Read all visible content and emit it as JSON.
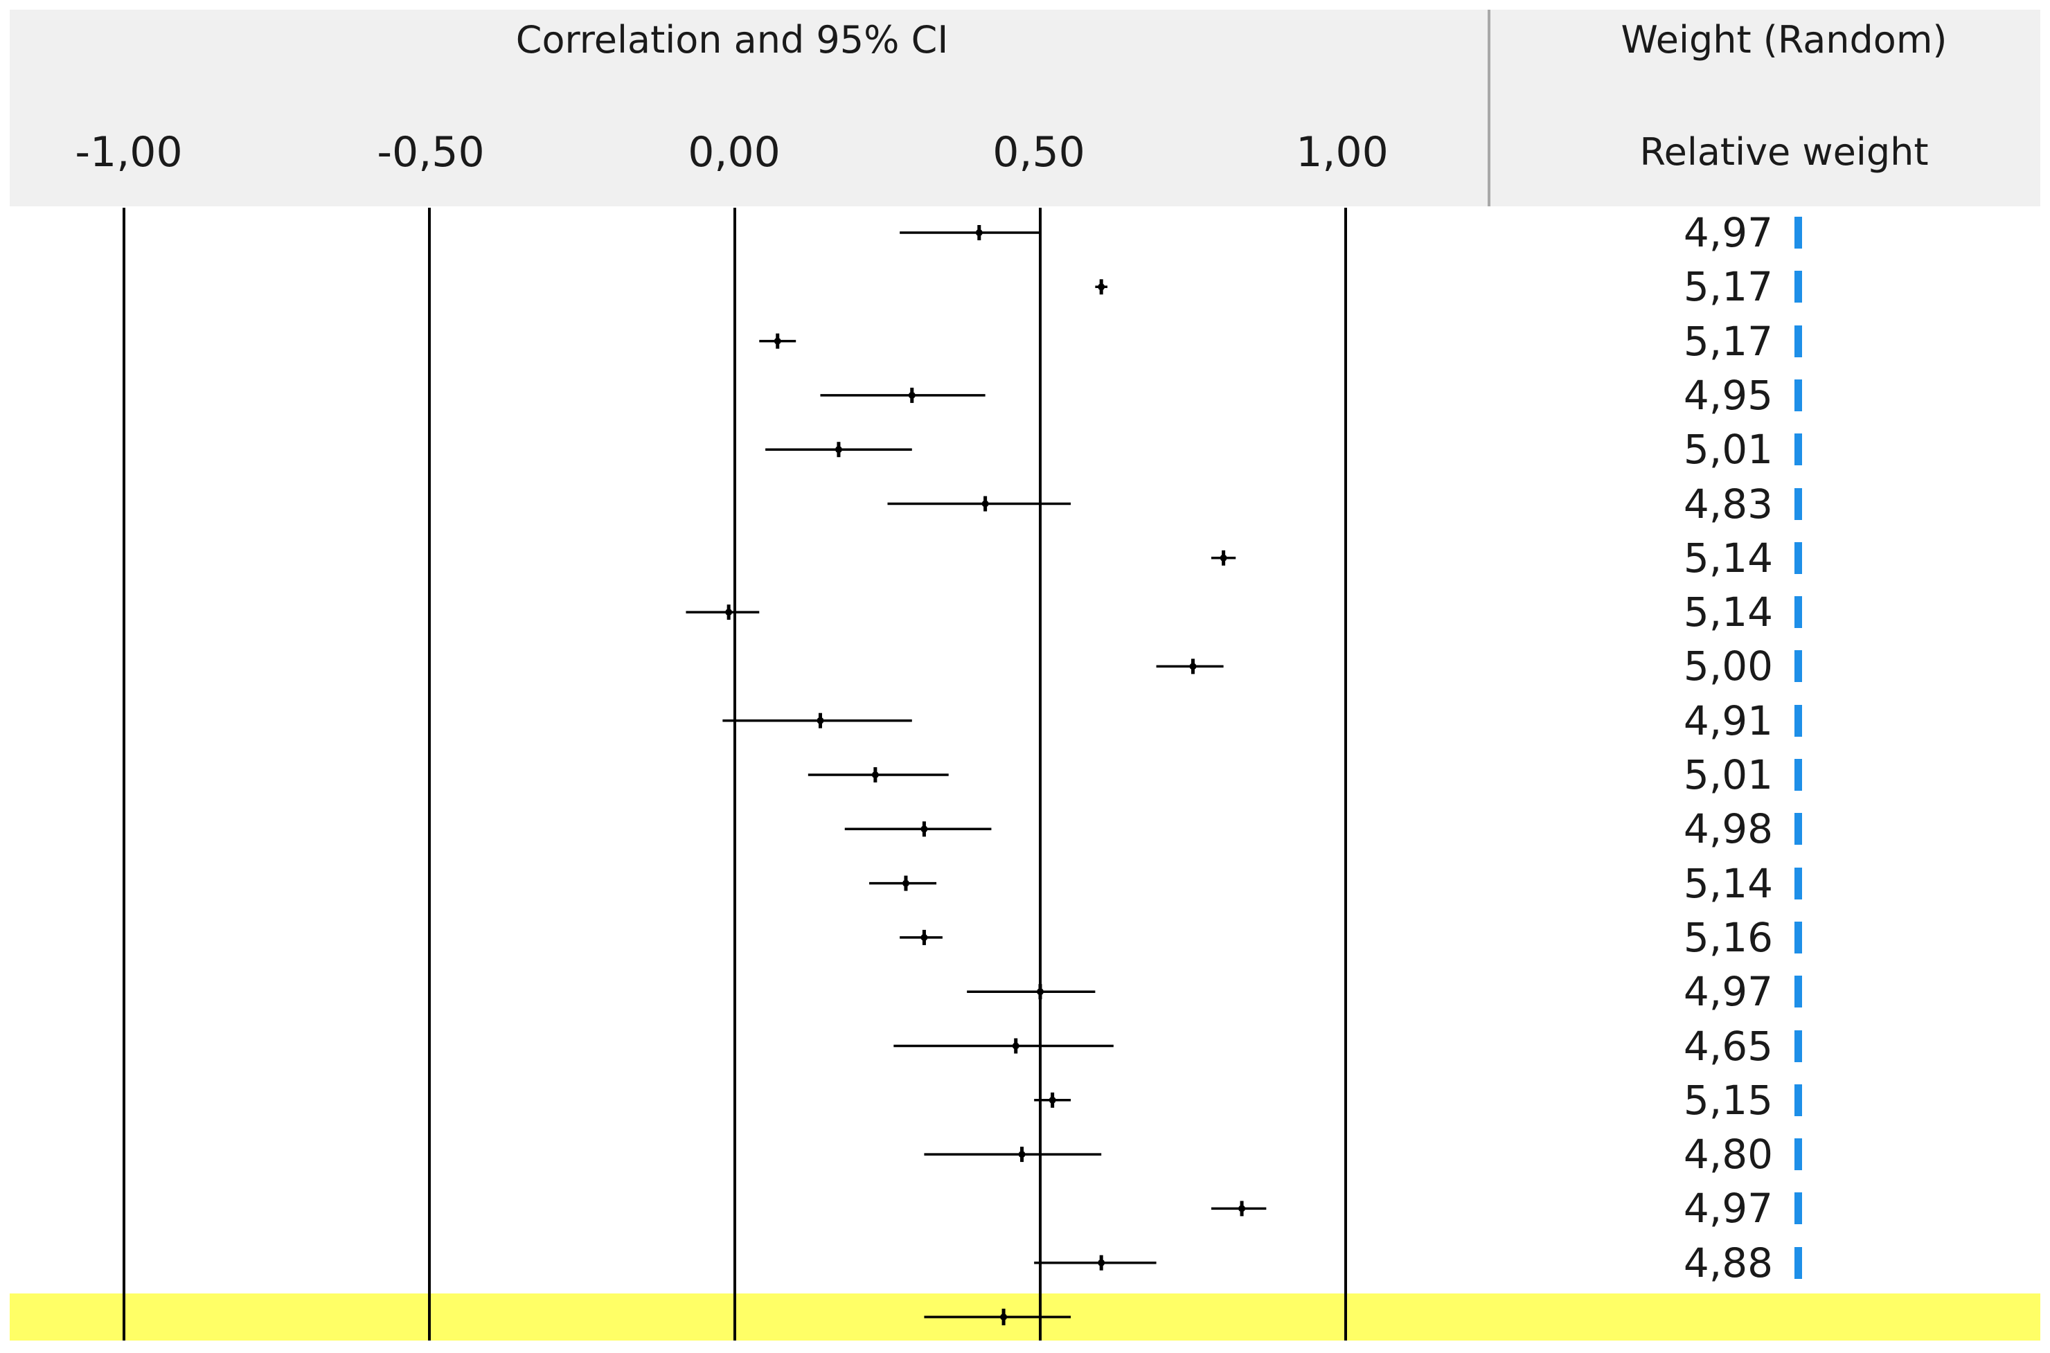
{
  "chart_data": {
    "type": "forest",
    "title": "Correlation and 95% CI",
    "weight_column_title": "Weight (Random)",
    "weight_column_subtitle": "Relative weight",
    "tick_labels": [
      "-1,00",
      "-0,50",
      "0,00",
      "0,50",
      "1,00"
    ],
    "tick_values": [
      -1.0,
      -0.5,
      0.0,
      0.5,
      1.0
    ],
    "xlim": [
      -1.0,
      1.0
    ],
    "studies": [
      {
        "r": 0.4,
        "lo": 0.27,
        "hi": 0.5,
        "weight": "4,97"
      },
      {
        "r": 0.6,
        "lo": 0.59,
        "hi": 0.61,
        "weight": "5,17"
      },
      {
        "r": 0.07,
        "lo": 0.04,
        "hi": 0.1,
        "weight": "5,17"
      },
      {
        "r": 0.29,
        "lo": 0.14,
        "hi": 0.41,
        "weight": "4,95"
      },
      {
        "r": 0.17,
        "lo": 0.05,
        "hi": 0.29,
        "weight": "5,01"
      },
      {
        "r": 0.41,
        "lo": 0.25,
        "hi": 0.55,
        "weight": "4,83"
      },
      {
        "r": 0.8,
        "lo": 0.78,
        "hi": 0.82,
        "weight": "5,14"
      },
      {
        "r": -0.01,
        "lo": -0.08,
        "hi": 0.04,
        "weight": "5,14"
      },
      {
        "r": 0.75,
        "lo": 0.69,
        "hi": 0.8,
        "weight": "5,00"
      },
      {
        "r": 0.14,
        "lo": -0.02,
        "hi": 0.29,
        "weight": "4,91"
      },
      {
        "r": 0.23,
        "lo": 0.12,
        "hi": 0.35,
        "weight": "5,01"
      },
      {
        "r": 0.31,
        "lo": 0.18,
        "hi": 0.42,
        "weight": "4,98"
      },
      {
        "r": 0.28,
        "lo": 0.22,
        "hi": 0.33,
        "weight": "5,14"
      },
      {
        "r": 0.31,
        "lo": 0.27,
        "hi": 0.34,
        "weight": "5,16"
      },
      {
        "r": 0.5,
        "lo": 0.38,
        "hi": 0.59,
        "weight": "4,97"
      },
      {
        "r": 0.46,
        "lo": 0.26,
        "hi": 0.62,
        "weight": "4,65"
      },
      {
        "r": 0.52,
        "lo": 0.49,
        "hi": 0.55,
        "weight": "5,15"
      },
      {
        "r": 0.47,
        "lo": 0.31,
        "hi": 0.6,
        "weight": "4,80"
      },
      {
        "r": 0.83,
        "lo": 0.78,
        "hi": 0.87,
        "weight": "4,97"
      },
      {
        "r": 0.6,
        "lo": 0.49,
        "hi": 0.69,
        "weight": "4,88"
      }
    ],
    "summary": {
      "r": 0.44,
      "lo": 0.31,
      "hi": 0.55
    }
  },
  "colors": {
    "header_bg": "#f0f0f0",
    "summary_band": "#ffff66",
    "weight_bar": "#1e8fe8",
    "line": "#000000"
  }
}
